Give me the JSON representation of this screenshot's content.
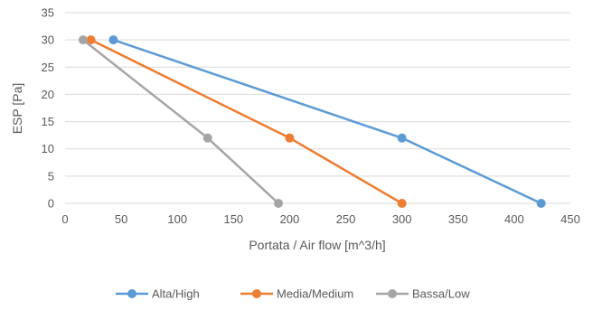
{
  "chart_data": {
    "type": "line",
    "xlabel": "Portata / Air flow [m^3/h]",
    "ylabel": "ESP [Pa]",
    "xlim": [
      0,
      450
    ],
    "ylim": [
      0,
      35
    ],
    "xticks": [
      0,
      50,
      100,
      150,
      200,
      250,
      300,
      350,
      400,
      450
    ],
    "yticks": [
      0,
      5,
      10,
      15,
      20,
      25,
      30,
      35
    ],
    "grid": "horizontal",
    "legend_position": "bottom",
    "series": [
      {
        "name": "Alta/High",
        "color": "#5B9BD5",
        "points": [
          [
            43,
            30
          ],
          [
            300,
            12
          ],
          [
            424,
            0
          ]
        ]
      },
      {
        "name": "Media/Medium",
        "color": "#ED7D31",
        "points": [
          [
            23,
            30
          ],
          [
            200,
            12
          ],
          [
            300,
            0
          ]
        ]
      },
      {
        "name": "Bassa/Low",
        "color": "#A5A5A5",
        "points": [
          [
            16,
            30
          ],
          [
            127,
            12
          ],
          [
            190,
            0
          ]
        ]
      }
    ]
  }
}
